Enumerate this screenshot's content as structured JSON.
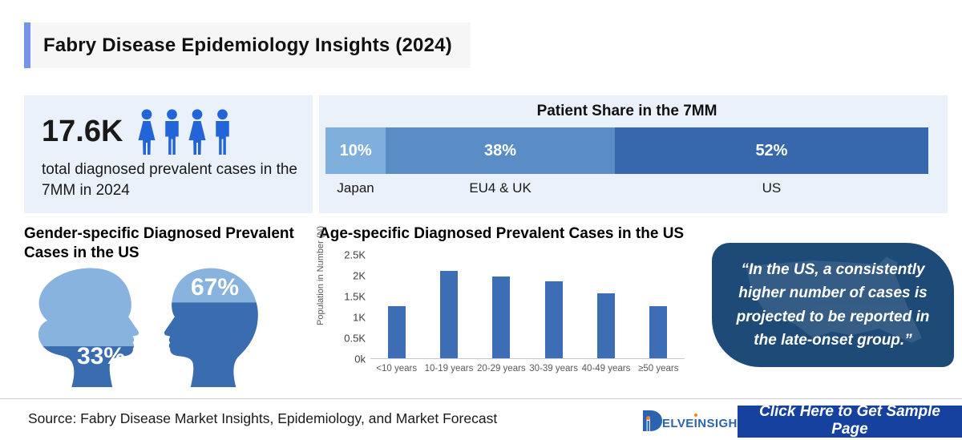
{
  "colors": {
    "accent": "#7394e7",
    "panel-bg": "#eaf1fb",
    "icon-blue": "#2365d9",
    "bar-color": "#3d6eb5",
    "head-light": "#89b3df",
    "head-dark": "#3a6cb0",
    "quote-bg": "#1e4a78",
    "btn-bg": "#17419e",
    "logo-blue": "#2c63b0",
    "logo-orange": "#f58220"
  },
  "header": {
    "title": "Fabry Disease Epidemiology Insights (2024)"
  },
  "stats": {
    "value": "17.6K",
    "description": "total diagnosed prevalent cases in the 7MM in 2024",
    "icons": [
      "female",
      "male",
      "female",
      "male"
    ]
  },
  "patient_share": {
    "title": "Patient Share in the 7MM",
    "segments": [
      {
        "label": "Japan",
        "pct": "10%",
        "value": 10,
        "color": "#7fb0dd"
      },
      {
        "label": "EU4 & UK",
        "pct": "38%",
        "value": 38,
        "color": "#5a8cc6"
      },
      {
        "label": "US",
        "pct": "52%",
        "value": 52,
        "color": "#3768ae"
      }
    ]
  },
  "gender": {
    "title": "Gender-specific Diagnosed Prevalent Cases in the US",
    "female_pct": "33%",
    "male_pct": "67%"
  },
  "age_chart": {
    "title": "Age-specific Diagnosed Prevalent Cases in the US",
    "ylabel": "Population in Number (N)",
    "yticks_top_to_bottom": [
      "2.5K",
      "2K",
      "1.5K",
      "1K",
      "0.5K",
      "0k"
    ],
    "ymax": 2500,
    "categories": [
      "<10 years",
      "10-19 years",
      "20-29 years",
      "30-39 years",
      "40-49 years",
      "≥50 years"
    ],
    "values": [
      1250,
      2100,
      1950,
      1850,
      1550,
      1250
    ]
  },
  "chart_data": [
    {
      "type": "bar",
      "subtype": "horizontal-stacked",
      "title": "Patient Share in the 7MM",
      "categories": [
        "Japan",
        "EU4 & UK",
        "US"
      ],
      "values": [
        10,
        38,
        52
      ],
      "unit": "%",
      "legend_position": "below-bar"
    },
    {
      "type": "bar",
      "title": "Age-specific Diagnosed Prevalent Cases in the US",
      "categories": [
        "<10 years",
        "10-19 years",
        "20-29 years",
        "30-39 years",
        "40-49 years",
        "≥50 years"
      ],
      "values": [
        1250,
        2100,
        1950,
        1850,
        1550,
        1250
      ],
      "xlabel": "",
      "ylabel": "Population in Number (N)",
      "ylim": [
        0,
        2500
      ],
      "yticks": [
        "0k",
        "0.5K",
        "1K",
        "1.5K",
        "2K",
        "2.5K"
      ],
      "grid": false
    }
  ],
  "quote": {
    "text": "“In the US, a consistently higher number of cases is projected to be reported in the late-onset group.”"
  },
  "footer": {
    "source": "Source: Fabry Disease Market Insights, Epidemiology, and Market Forecast",
    "logo": {
      "d": "D",
      "part1": "ELVE",
      "i": "I",
      "part2": "NSIGHT"
    },
    "button_label": "Click Here to Get Sample Page"
  }
}
